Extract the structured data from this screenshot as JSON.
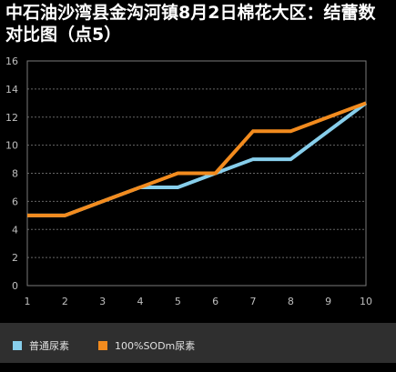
{
  "chart_data": {
    "type": "line",
    "title": "中石油沙湾县金沟河镇8月2日棉花大区：结蕾数对比图（点5）",
    "x": [
      1,
      2,
      3,
      4,
      5,
      6,
      7,
      8,
      9,
      10
    ],
    "xlim": [
      1,
      10
    ],
    "ylim": [
      0,
      16
    ],
    "yticks": [
      0,
      2,
      4,
      6,
      8,
      10,
      12,
      14,
      16
    ],
    "grid": true,
    "legend_position": "bottom-left",
    "series": [
      {
        "name": "普通尿素",
        "color": "#87ceeb",
        "values": [
          5,
          5,
          6,
          7,
          7,
          8,
          9,
          9,
          11,
          13
        ]
      },
      {
        "name": "100%SODm尿素",
        "color": "#f28b1e",
        "values": [
          5,
          5,
          6,
          7,
          8,
          8,
          11,
          11,
          12,
          13
        ]
      }
    ]
  }
}
